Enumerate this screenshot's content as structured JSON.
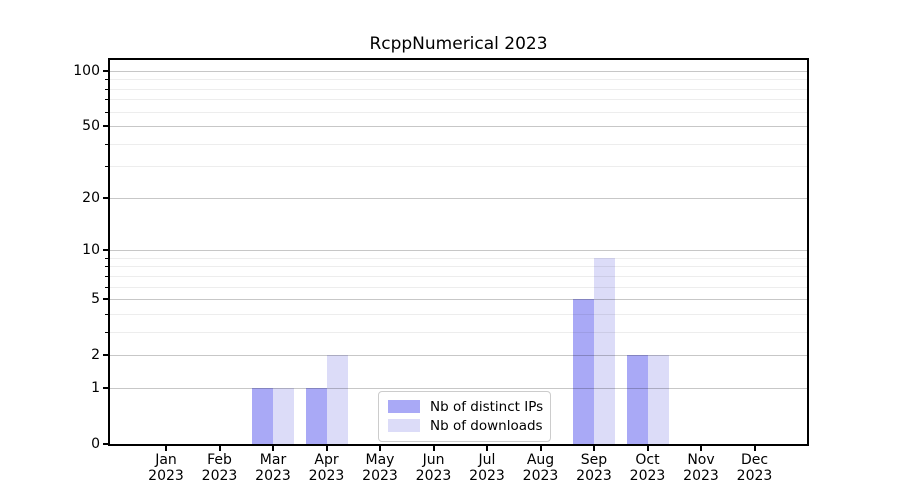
{
  "chart_data": {
    "type": "bar",
    "title": "RcppNumerical 2023",
    "categories": [
      "Jan",
      "Feb",
      "Mar",
      "Apr",
      "May",
      "Jun",
      "Jul",
      "Aug",
      "Sep",
      "Oct",
      "Nov",
      "Dec"
    ],
    "year_label": "2023",
    "series": [
      {
        "name": "Nb of distinct IPs",
        "color": "#a9a9f6",
        "values": [
          0,
          0,
          1,
          1,
          0,
          0,
          0,
          0,
          5,
          2,
          0,
          0
        ]
      },
      {
        "name": "Nb of downloads",
        "color": "#dcdcf8",
        "values": [
          0,
          0,
          1,
          2,
          0,
          0,
          0,
          0,
          9,
          2,
          0,
          0
        ]
      }
    ],
    "yscale": "log1p",
    "yticks": [
      0,
      1,
      2,
      5,
      10,
      20,
      50,
      100
    ],
    "minor_yticks": [
      3,
      4,
      6,
      7,
      8,
      9,
      30,
      40,
      60,
      70,
      80,
      90
    ],
    "ylim": [
      0,
      115
    ],
    "grid": true,
    "legend_position": "lower center"
  }
}
